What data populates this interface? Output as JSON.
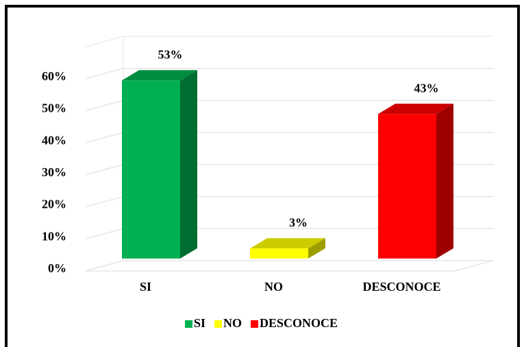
{
  "chart_data": {
    "type": "bar3d",
    "categories": [
      "SI",
      "NO",
      "DESCONOCE"
    ],
    "values": [
      53,
      3,
      43
    ],
    "value_labels": [
      "53%",
      "3%",
      "43%"
    ],
    "colors": [
      "#00b050",
      "#ffff00",
      "#ff0000"
    ],
    "ylim": [
      0,
      70
    ],
    "yticks": [
      {
        "value": 0,
        "label": "0%"
      },
      {
        "value": 10,
        "label": "10%"
      },
      {
        "value": 20,
        "label": "20%"
      },
      {
        "value": 30,
        "label": "30%"
      },
      {
        "value": 40,
        "label": "40%"
      },
      {
        "value": 50,
        "label": "50%"
      },
      {
        "value": 60,
        "label": "60%"
      }
    ],
    "grid": true,
    "legend": "bottom"
  }
}
